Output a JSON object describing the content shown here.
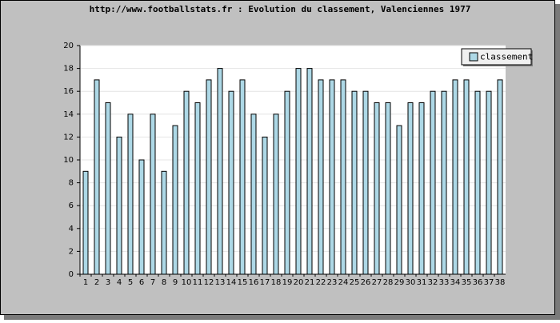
{
  "chart_data": {
    "type": "bar",
    "title": "http://www.footballstats.fr : Evolution du classement, Valenciennes 1977",
    "categories": [
      "1",
      "2",
      "3",
      "4",
      "5",
      "6",
      "7",
      "8",
      "9",
      "10",
      "11",
      "12",
      "13",
      "14",
      "15",
      "16",
      "17",
      "18",
      "19",
      "20",
      "21",
      "22",
      "23",
      "24",
      "25",
      "26",
      "27",
      "28",
      "29",
      "30",
      "31",
      "32",
      "33",
      "34",
      "35",
      "36",
      "37",
      "38"
    ],
    "series": [
      {
        "name": "classement",
        "color": "#add8e6",
        "values": [
          9,
          17,
          15,
          12,
          14,
          10,
          14,
          9,
          13,
          16,
          15,
          17,
          18,
          16,
          17,
          14,
          12,
          14,
          16,
          18,
          18,
          17,
          17,
          17,
          16,
          16,
          15,
          15,
          13,
          15,
          15,
          16,
          16,
          17,
          17,
          16,
          16,
          17
        ]
      }
    ],
    "ylim": [
      0,
      20
    ],
    "yticks": [
      0,
      2,
      4,
      6,
      8,
      10,
      12,
      14,
      16,
      18,
      20
    ],
    "grid": true,
    "legend": "top-right"
  }
}
